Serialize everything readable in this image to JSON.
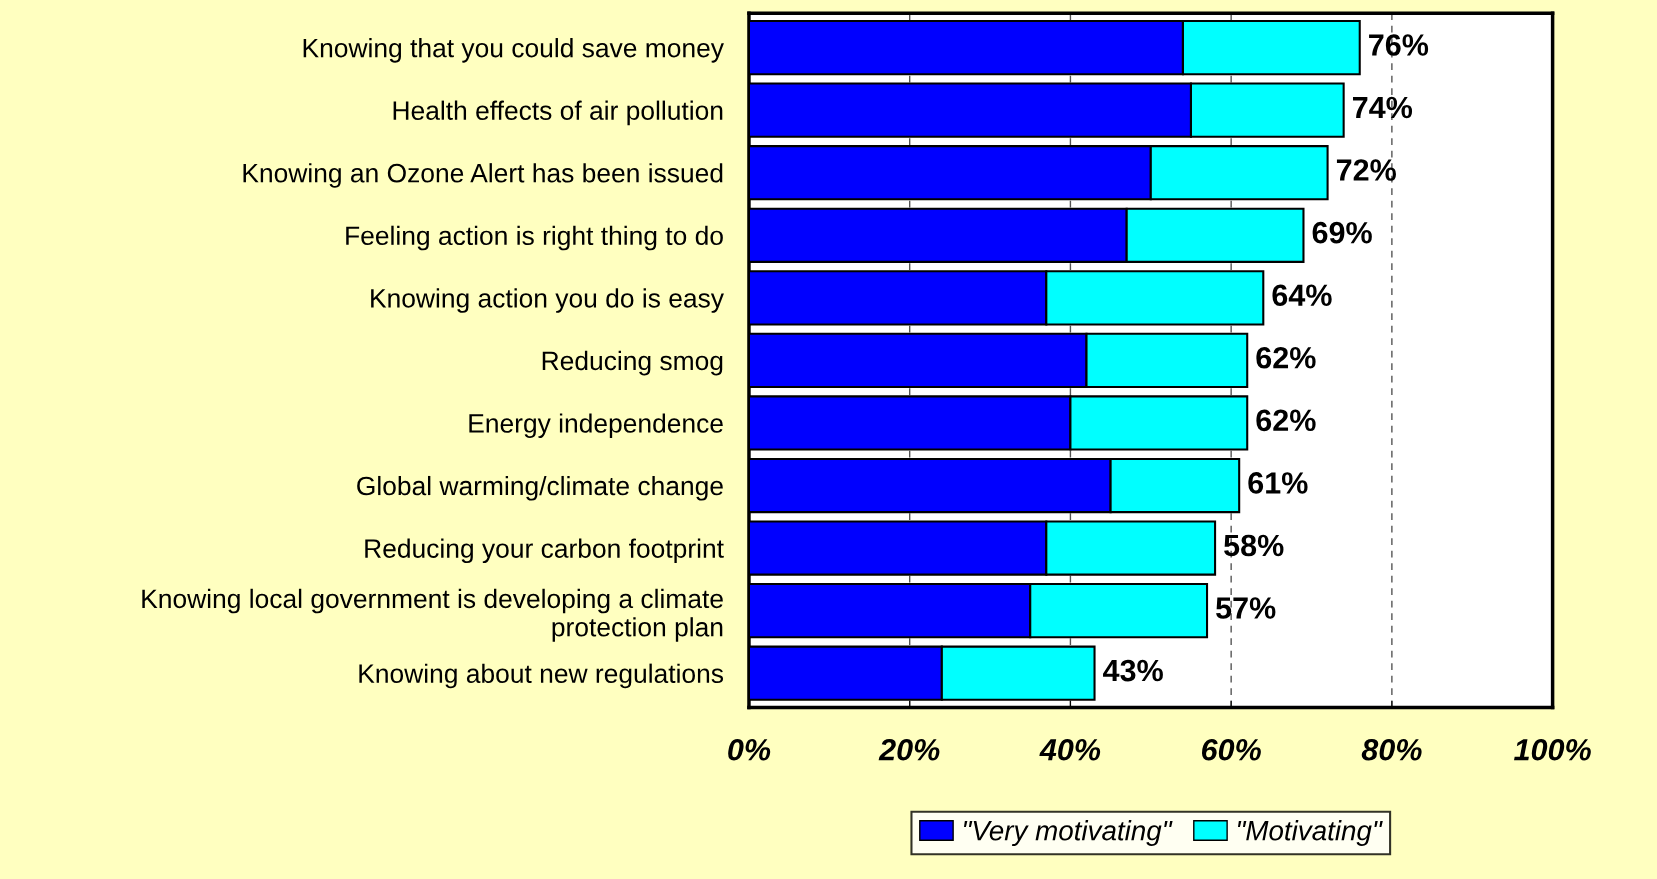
{
  "chart_data": {
    "type": "bar",
    "orientation": "horizontal",
    "stacked": true,
    "categories": [
      "Knowing that you could save money",
      "Health effects of air pollution",
      "Knowing an Ozone Alert has been issued",
      "Feeling action is right thing to do",
      "Knowing action you do is easy",
      "Reducing smog",
      "Energy independence",
      "Global warming/climate change",
      "Reducing your carbon footprint",
      "Knowing local government is developing a climate\nprotection plan",
      "Knowing about new regulations"
    ],
    "series": [
      {
        "name": "\"Very motivating\"",
        "color": "#0000ff",
        "values": [
          54,
          55,
          50,
          47,
          37,
          42,
          40,
          45,
          37,
          35,
          24
        ]
      },
      {
        "name": "\"Motivating\"",
        "color": "#00ffff",
        "values": [
          22,
          19,
          22,
          22,
          27,
          20,
          22,
          16,
          21,
          22,
          19
        ]
      }
    ],
    "totals": [
      "76%",
      "74%",
      "72%",
      "69%",
      "64%",
      "62%",
      "62%",
      "61%",
      "58%",
      "57%",
      "43%"
    ],
    "xlim": [
      0,
      100
    ],
    "xticks": [
      {
        "value": 0,
        "label": "0%"
      },
      {
        "value": 20,
        "label": "20%"
      },
      {
        "value": 40,
        "label": "40%"
      },
      {
        "value": 60,
        "label": "60%"
      },
      {
        "value": 80,
        "label": "80%"
      },
      {
        "value": 100,
        "label": "100%"
      }
    ],
    "grid": "x",
    "legend": "bottom"
  }
}
